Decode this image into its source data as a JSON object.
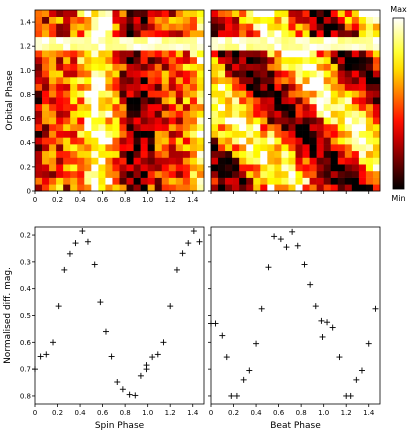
{
  "colorbar": {
    "max_label": "Max",
    "min_label": "Min",
    "colormap": "hot"
  },
  "chart_data": [
    {
      "type": "heatmap",
      "name": "heatmap-spin",
      "xlabel": "",
      "ylabel": "Orbital Phase",
      "xlim": [
        0,
        1.5
      ],
      "ylim": [
        0,
        1.5
      ],
      "xticks": [
        "0",
        "0.2",
        "0.4",
        "0.6",
        "0.8",
        "1.0",
        "1.2",
        "1.4"
      ],
      "yticks": [
        "0",
        "0.2",
        "0.4",
        "0.6",
        "0.8",
        "1.0",
        "1.2",
        "1.4"
      ],
      "grid_cols": 24,
      "grid_rows": 27,
      "pattern": "vertical bands: bright near spin 0.1, 0.5, 1.1; dark near 0.3 and 0.8; bright stripe near orbital phase 1.2"
    },
    {
      "type": "heatmap",
      "name": "heatmap-beat",
      "xlabel": "",
      "ylabel": "",
      "xlim": [
        0,
        1.5
      ],
      "ylim": [
        0,
        1.5
      ],
      "xticks": [],
      "yticks": [],
      "grid_cols": 24,
      "grid_rows": 27,
      "pattern": "diagonal bands running from upper-left to lower-right; bright stripe near orbital phase 1.2"
    },
    {
      "type": "scatter",
      "name": "spin-phase",
      "xlabel": "Spin Phase",
      "ylabel": "Normalised diff. mag.",
      "xlim": [
        0,
        1.5
      ],
      "ylim": [
        0.83,
        0.17
      ],
      "xticks": [
        "0",
        "0.2",
        "0.4",
        "0.6",
        "0.8",
        "1.0",
        "1.2",
        "1.4"
      ],
      "yticks": [
        "0.2",
        "0.3",
        "0.4",
        "0.5",
        "0.6",
        "0.7",
        "0.8"
      ],
      "points": [
        [
          0.0,
          0.7
        ],
        [
          0.05,
          0.653
        ],
        [
          0.1,
          0.645
        ],
        [
          0.16,
          0.6
        ],
        [
          0.21,
          0.465
        ],
        [
          0.26,
          0.33
        ],
        [
          0.31,
          0.27
        ],
        [
          0.36,
          0.23
        ],
        [
          0.42,
          0.185
        ],
        [
          0.47,
          0.225
        ],
        [
          0.53,
          0.31
        ],
        [
          0.58,
          0.45
        ],
        [
          0.63,
          0.56
        ],
        [
          0.68,
          0.653
        ],
        [
          0.73,
          0.748
        ],
        [
          0.78,
          0.775
        ],
        [
          0.84,
          0.795
        ],
        [
          0.89,
          0.798
        ],
        [
          0.94,
          0.725
        ],
        [
          0.99,
          0.7
        ],
        [
          0.99,
          0.685
        ],
        [
          1.04,
          0.655
        ],
        [
          1.09,
          0.645
        ],
        [
          1.14,
          0.6
        ],
        [
          1.2,
          0.465
        ],
        [
          1.26,
          0.33
        ],
        [
          1.31,
          0.268
        ],
        [
          1.36,
          0.23
        ],
        [
          1.41,
          0.185
        ],
        [
          1.46,
          0.225
        ]
      ]
    },
    {
      "type": "scatter",
      "name": "beat-phase",
      "xlabel": "Beat Phase",
      "ylabel": "",
      "xlim": [
        0,
        1.5
      ],
      "ylim": [
        0.83,
        0.17
      ],
      "xticks": [
        "0",
        "0.2",
        "0.4",
        "0.6",
        "0.8",
        "1.0",
        "1.2",
        "1.4"
      ],
      "yticks": [],
      "points": [
        [
          0.0,
          0.53
        ],
        [
          0.04,
          0.53
        ],
        [
          0.1,
          0.575
        ],
        [
          0.14,
          0.655
        ],
        [
          0.18,
          0.8
        ],
        [
          0.23,
          0.8
        ],
        [
          0.29,
          0.74
        ],
        [
          0.34,
          0.705
        ],
        [
          0.4,
          0.605
        ],
        [
          0.45,
          0.475
        ],
        [
          0.51,
          0.32
        ],
        [
          0.56,
          0.205
        ],
        [
          0.62,
          0.215
        ],
        [
          0.67,
          0.245
        ],
        [
          0.72,
          0.188
        ],
        [
          0.77,
          0.24
        ],
        [
          0.83,
          0.31
        ],
        [
          0.88,
          0.385
        ],
        [
          0.93,
          0.465
        ],
        [
          0.98,
          0.52
        ],
        [
          0.99,
          0.58
        ],
        [
          1.03,
          0.525
        ],
        [
          1.08,
          0.545
        ],
        [
          1.14,
          0.655
        ],
        [
          1.2,
          0.8
        ],
        [
          1.24,
          0.8
        ],
        [
          1.29,
          0.74
        ],
        [
          1.34,
          0.705
        ],
        [
          1.4,
          0.605
        ],
        [
          1.46,
          0.475
        ]
      ]
    }
  ]
}
